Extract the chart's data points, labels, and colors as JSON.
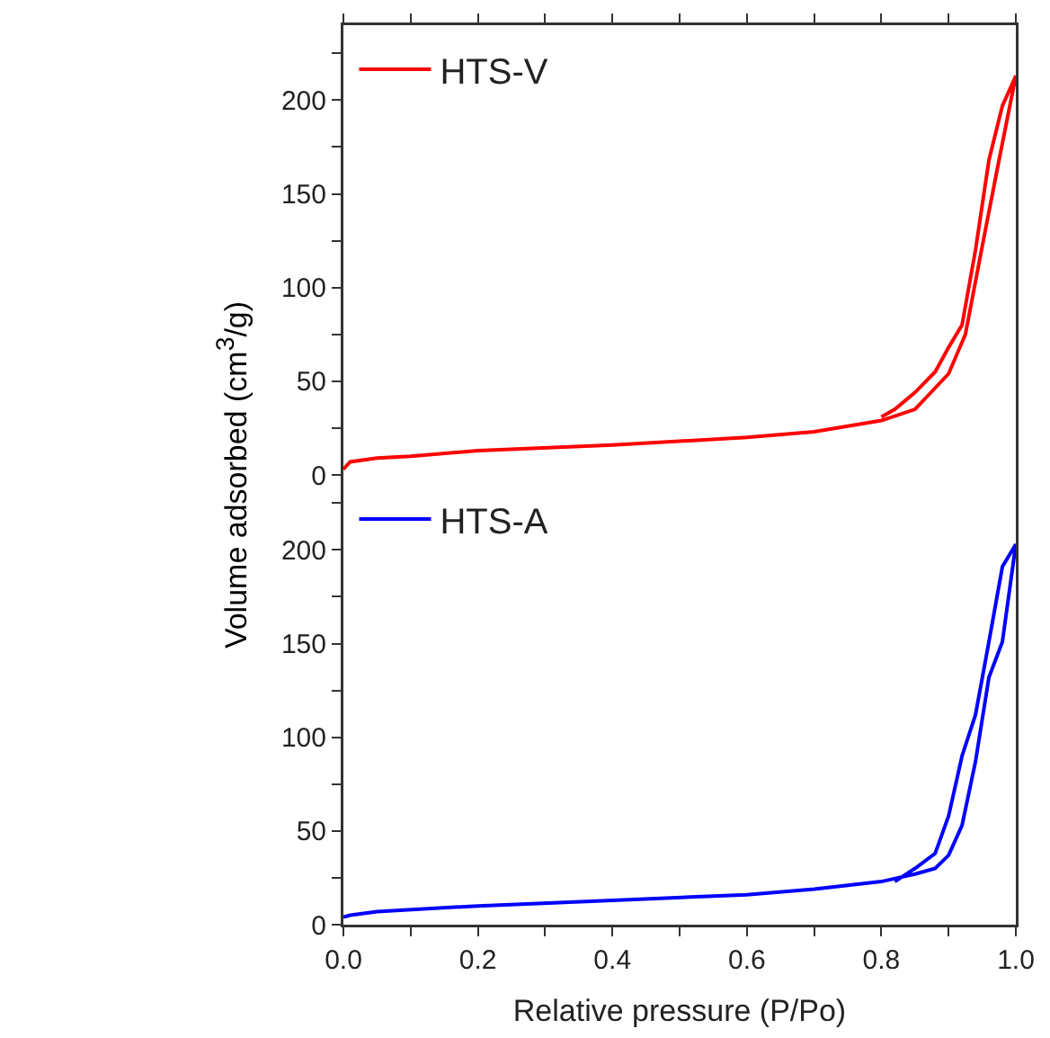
{
  "chart_data": [
    {
      "type": "line",
      "ylabel": "Volume adsorbed (cm$^{3}$/g)",
      "xlim": [
        0,
        1
      ],
      "ylim": [
        0,
        240
      ],
      "xticks": [
        0,
        {
          "value": 0.1,
          "label": null
        },
        0.2,
        {
          "value": 0.3,
          "label": null
        },
        0.4,
        {
          "value": 0.5,
          "label": null
        },
        0.6,
        {
          "value": 0.7,
          "label": null
        },
        0.8,
        {
          "value": 0.9,
          "label": null
        },
        1
      ],
      "yticks": [
        0,
        {
          "value": 25,
          "label": null
        },
        50,
        {
          "value": 75,
          "label": null
        },
        100,
        {
          "value": 125,
          "label": null
        },
        150,
        {
          "value": 175,
          "label": null
        },
        200,
        {
          "value": 225,
          "label": null
        }
      ],
      "tick_labels": "y",
      "legend": "top left",
      "marker": "none",
      "line_style": "solid",
      "series": [
        {
          "name": "HTS-V",
          "color": "#ff0000",
          "x": [
            0,
            0.01,
            0.05,
            0.1,
            0.2,
            0.4,
            0.6,
            0.7,
            0.8,
            0.85,
            0.9,
            0.925,
            0.95,
            0.975,
            1.0,
            0.98,
            0.96,
            0.94,
            0.92,
            0.9,
            0.88,
            0.85,
            0.82,
            0.8
          ],
          "values": [
            3,
            7,
            9,
            10,
            13,
            16,
            20,
            23,
            29,
            35,
            54,
            75,
            122,
            168,
            213,
            197,
            168,
            120,
            80,
            68,
            55,
            44,
            35,
            31
          ]
        }
      ]
    },
    {
      "type": "line",
      "xlabel": "Relative pressure (P/Po)",
      "xlim": [
        0,
        1
      ],
      "ylim": [
        0,
        240
      ],
      "xticks": [
        {
          "value": 0,
          "label": "0.0"
        },
        {
          "value": 0.1,
          "label": null
        },
        0.2,
        {
          "value": 0.3,
          "label": null
        },
        0.4,
        {
          "value": 0.5,
          "label": null
        },
        0.6,
        {
          "value": 0.7,
          "label": null
        },
        0.8,
        {
          "value": 0.9,
          "label": null
        },
        {
          "value": 1,
          "label": "1.0"
        }
      ],
      "yticks": [
        0,
        {
          "value": 25,
          "label": null
        },
        50,
        {
          "value": 75,
          "label": null
        },
        100,
        {
          "value": 125,
          "label": null
        },
        150,
        {
          "value": 175,
          "label": null
        },
        200,
        {
          "value": 225,
          "label": null
        }
      ],
      "legend": "top left",
      "marker": "none",
      "line_style": "solid",
      "series": [
        {
          "name": "HTS-A",
          "color": "#0000ff",
          "x": [
            0,
            0.01,
            0.05,
            0.2,
            0.4,
            0.6,
            0.7,
            0.8,
            0.85,
            0.88,
            0.9,
            0.92,
            0.94,
            0.96,
            0.98,
            1.0,
            0.98,
            0.96,
            0.94,
            0.92,
            0.9,
            0.88,
            0.85,
            0.82
          ],
          "values": [
            4,
            5,
            7,
            10,
            13,
            16,
            19,
            23,
            27,
            30,
            37,
            53,
            87,
            132,
            151,
            203,
            191,
            151,
            112,
            90,
            58,
            38,
            30,
            23
          ]
        }
      ]
    }
  ]
}
